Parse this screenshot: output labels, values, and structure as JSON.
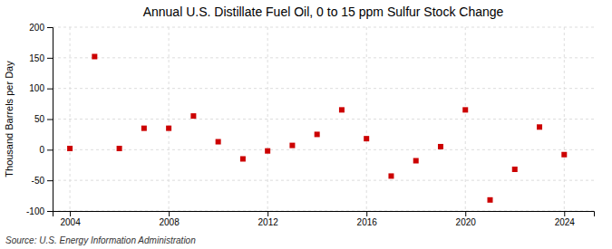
{
  "chart_data": {
    "type": "scatter",
    "title": "Annual U.S. Distillate Fuel Oil, 0 to 15 ppm Sulfur Stock Change",
    "ylabel": "Thousand Barrels per Day",
    "source": "Source: U.S. Energy Information Administration",
    "x": [
      2004,
      2005,
      2006,
      2007,
      2008,
      2009,
      2010,
      2011,
      2012,
      2013,
      2014,
      2015,
      2016,
      2017,
      2018,
      2019,
      2020,
      2021,
      2022,
      2023,
      2024
    ],
    "values": [
      2,
      152,
      2,
      35,
      35,
      55,
      13,
      -15,
      -2,
      7,
      25,
      65,
      18,
      -43,
      -18,
      5,
      65,
      -82,
      -32,
      37,
      -8
    ],
    "color": "#cc0000",
    "marker": "square",
    "xlim": [
      2003.3,
      2025.2
    ],
    "xticks": [
      2004,
      2008,
      2012,
      2016,
      2020,
      2024
    ],
    "ylim": [
      -100,
      200
    ],
    "yticks": [
      -100,
      -50,
      0,
      50,
      100,
      150,
      200
    ],
    "grid": true
  }
}
